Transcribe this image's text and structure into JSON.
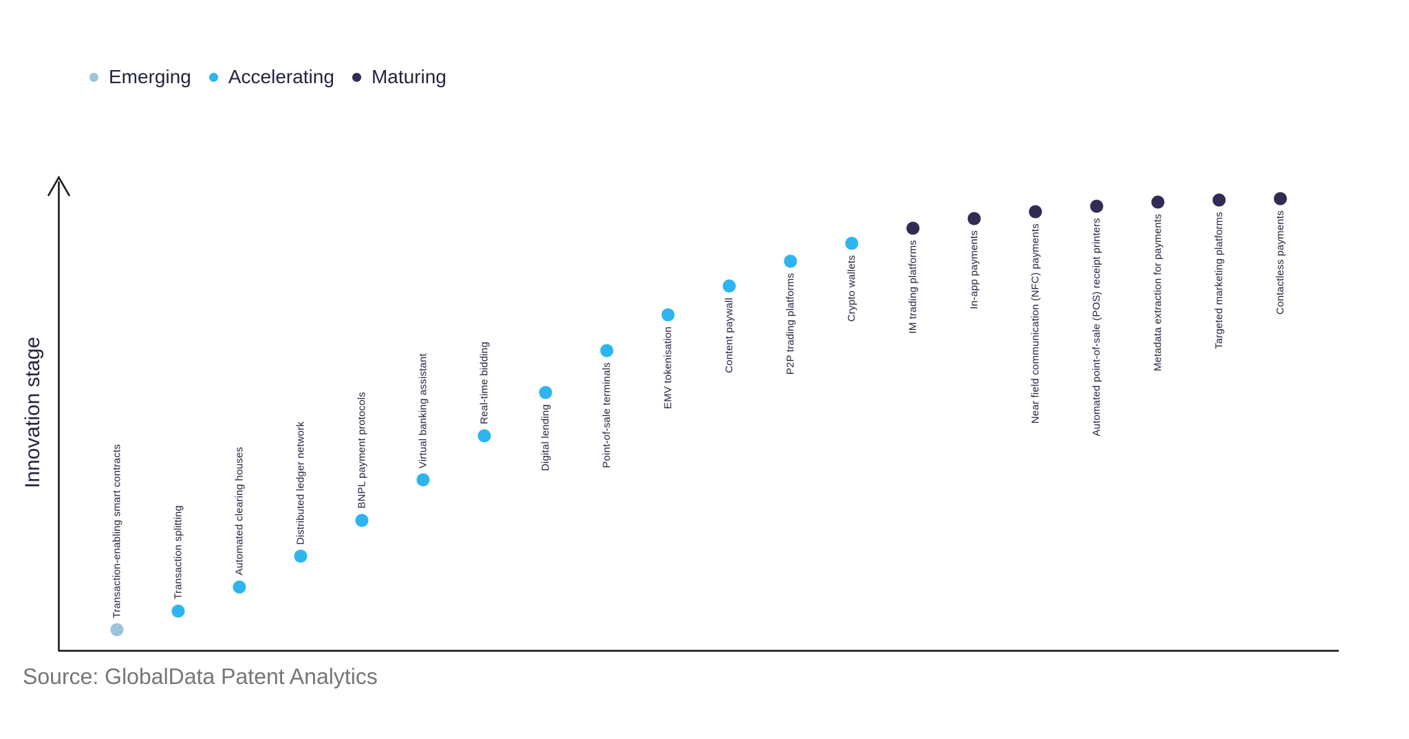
{
  "colors": {
    "emerging": "#9DC4DC",
    "accelerating": "#2EB5F0",
    "maturing": "#332B54",
    "axis": "#1A1A1A",
    "label_text": "#23243E",
    "source_text": "#767676"
  },
  "legend": {
    "items": [
      {
        "label": "Emerging",
        "stage": "emerging"
      },
      {
        "label": "Accelerating",
        "stage": "accelerating"
      },
      {
        "label": "Maturing",
        "stage": "maturing"
      }
    ]
  },
  "chart_data": {
    "type": "scatter",
    "title": "",
    "xlabel": "",
    "ylabel": "Innovation stage",
    "grid": false,
    "legend_position": "top-left",
    "x_axis": {
      "ticks": "none",
      "labels": "rotated point labels, 90deg counterclockwise"
    },
    "y_axis": {
      "label": "Innovation stage",
      "scale": "qualitative",
      "range": [
        0,
        100
      ],
      "arrow": true,
      "ticks": "none"
    },
    "points": [
      {
        "label": "Transaction-enabling smart contracts",
        "stage": "emerging",
        "x": 1,
        "value": 4.5
      },
      {
        "label": "Transaction splitting",
        "stage": "accelerating",
        "x": 2,
        "value": 8.4
      },
      {
        "label": "Automated clearing houses",
        "stage": "accelerating",
        "x": 3,
        "value": 13.5
      },
      {
        "label": "Distributed ledger network",
        "stage": "accelerating",
        "x": 4,
        "value": 20.0
      },
      {
        "label": "BNPL payment protocols",
        "stage": "accelerating",
        "x": 5,
        "value": 27.6
      },
      {
        "label": "Virtual banking assistant",
        "stage": "accelerating",
        "x": 6,
        "value": 36.1
      },
      {
        "label": "Real-time bidding",
        "stage": "accelerating",
        "x": 7,
        "value": 45.4
      },
      {
        "label": "Digital lending",
        "stage": "accelerating",
        "x": 8,
        "value": 54.6
      },
      {
        "label": "Point-of-sale terminals",
        "stage": "accelerating",
        "x": 9,
        "value": 63.4
      },
      {
        "label": "EMV tokenisation",
        "stage": "accelerating",
        "x": 10,
        "value": 71.0
      },
      {
        "label": "Content paywall",
        "stage": "accelerating",
        "x": 11,
        "value": 77.1
      },
      {
        "label": "P2P trading platforms",
        "stage": "accelerating",
        "x": 12,
        "value": 82.3
      },
      {
        "label": "Crypto wallets",
        "stage": "accelerating",
        "x": 13,
        "value": 86.1
      },
      {
        "label": "IM trading platforms",
        "stage": "maturing",
        "x": 14,
        "value": 89.3
      },
      {
        "label": "In-app payments",
        "stage": "maturing",
        "x": 15,
        "value": 91.3
      },
      {
        "label": "Near field communication (NFC) payments",
        "stage": "maturing",
        "x": 16,
        "value": 92.7
      },
      {
        "label": "Automated point-of-sale (POS) receipt printers",
        "stage": "maturing",
        "x": 17,
        "value": 93.9
      },
      {
        "label": "Metadata extraction for payments",
        "stage": "maturing",
        "x": 18,
        "value": 94.8
      },
      {
        "label": "Targeted marketing platforms",
        "stage": "maturing",
        "x": 19,
        "value": 95.2
      },
      {
        "label": "Contactless payments",
        "stage": "maturing",
        "x": 20,
        "value": 95.5
      }
    ]
  },
  "source": {
    "text": "Source: GlobalData Patent Analytics"
  }
}
